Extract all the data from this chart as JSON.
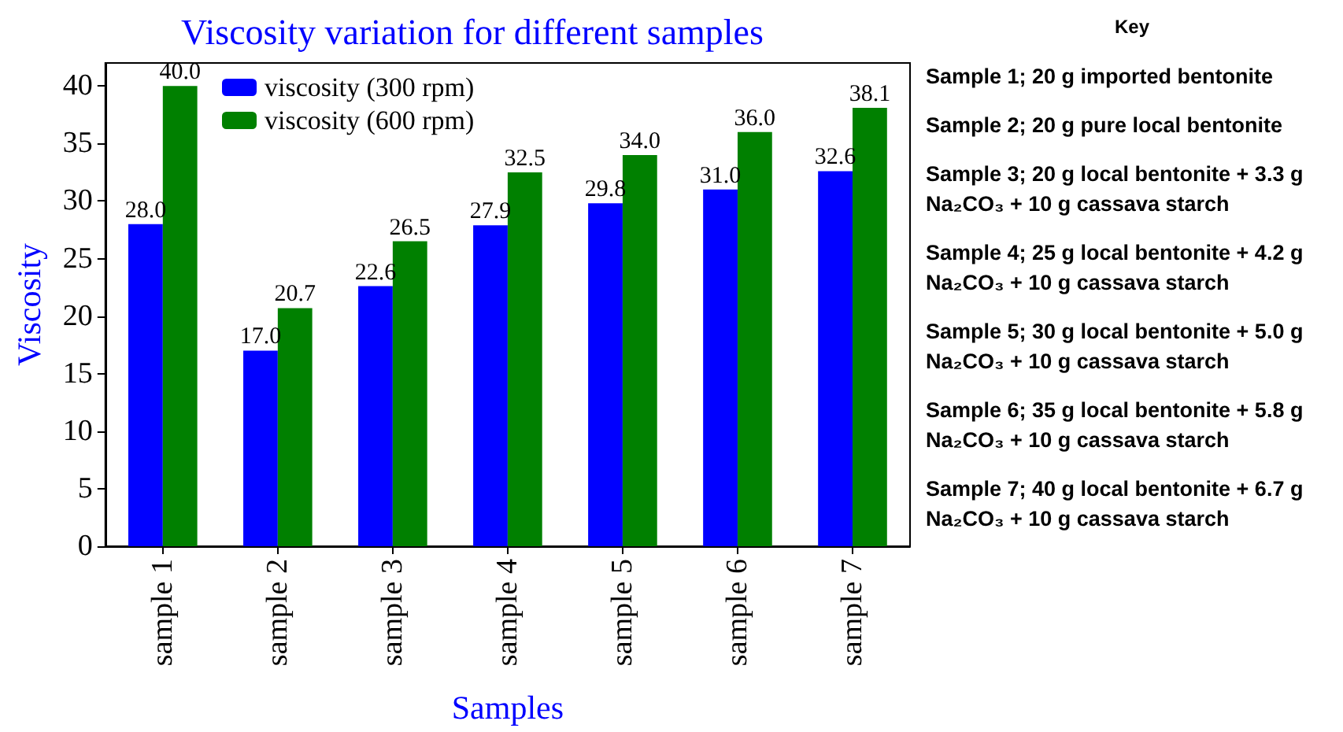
{
  "chart_data": {
    "type": "bar",
    "title": "Viscosity variation for different samples",
    "xlabel": "Samples",
    "ylabel": "Viscosity",
    "categories": [
      "sample 1",
      "sample 2",
      "sample 3",
      "sample 4",
      "sample 5",
      "sample 6",
      "sample 7"
    ],
    "series": [
      {
        "name": "viscosity (300 rpm)",
        "color": "#0000ff",
        "values": [
          28.0,
          17.0,
          22.6,
          27.9,
          29.8,
          31.0,
          32.6
        ],
        "value_labels": [
          "28.0",
          "17.0",
          "22.6",
          "27.9",
          "29.8",
          "31.0",
          "32.6"
        ]
      },
      {
        "name": "viscosity (600 rpm)",
        "color": "#008000",
        "values": [
          40.0,
          20.7,
          26.5,
          32.5,
          34.0,
          36.0,
          38.1
        ],
        "value_labels": [
          "40.0",
          "20.7",
          "26.5",
          "32.5",
          "34.0",
          "36.0",
          "38.1"
        ]
      }
    ],
    "ylim": [
      0,
      42
    ],
    "yticks": [
      0,
      5,
      10,
      15,
      20,
      25,
      30,
      35,
      40
    ],
    "legend": "top left",
    "annotations": [
      "Key",
      "Sample 1; 20 g imported bentonite",
      "Sample 2; 20 g pure local bentonite",
      "Sample 3; 20 g local bentonite + 3.3 g Na₂CO₃ + 10 g cassava starch",
      "Sample 4; 25 g local bentonite + 4.2 g Na₂CO₃ + 10 g cassava starch",
      "Sample 5; 30 g local bentonite + 5.0 g Na₂CO₃ + 10 g cassava starch",
      "Sample 6; 35 g local bentonite + 5.8 g Na₂CO₃ + 10 g cassava starch",
      "Sample 7; 40 g local bentonite + 6.7 g Na₂CO₃ + 10 g cassava starch"
    ]
  }
}
